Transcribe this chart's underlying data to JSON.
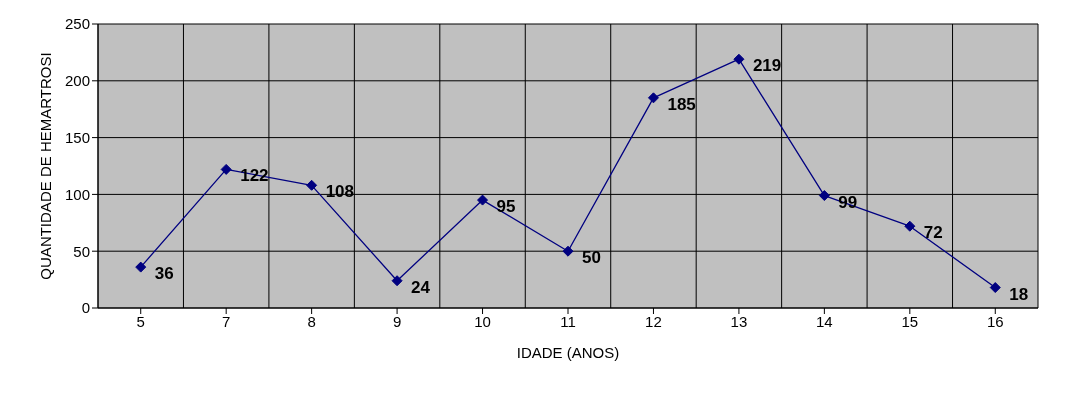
{
  "chart_data": {
    "type": "line",
    "xlabel": "IDADE (ANOS)",
    "ylabel": "QUANTIDADE DE HEMARTROSI",
    "categories": [
      "5",
      "7",
      "8",
      "9",
      "10",
      "11",
      "12",
      "13",
      "14",
      "15",
      "16"
    ],
    "series": [
      {
        "color": "#000080",
        "values": [
          36,
          122,
          108,
          24,
          95,
          50,
          185,
          219,
          99,
          72,
          18
        ]
      }
    ],
    "ylim": [
      0,
      250
    ],
    "yticks": [
      0,
      50,
      100,
      150,
      200,
      250
    ],
    "grid": true,
    "marker": "diamond",
    "line_style": "solid",
    "data_labels": true,
    "legend": false
  }
}
